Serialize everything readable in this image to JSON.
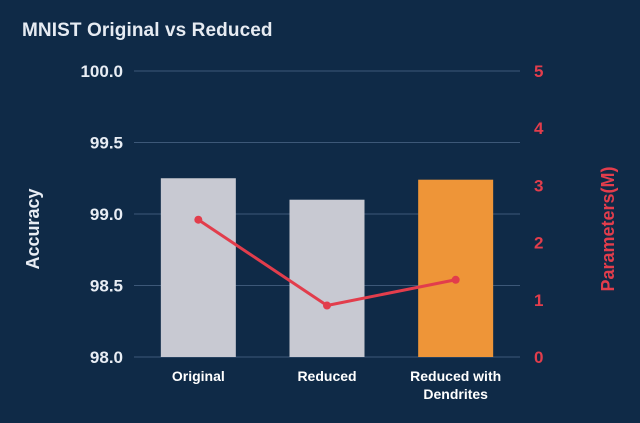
{
  "title": "MNIST Original vs Reduced",
  "chart_data": {
    "type": "bar",
    "title": "MNIST Original vs Reduced",
    "categories": [
      "Original",
      "Reduced",
      "Reduced with\nDendrites"
    ],
    "category_lines": [
      [
        "Original"
      ],
      [
        "Reduced"
      ],
      [
        "Reduced with",
        "Dendrites"
      ]
    ],
    "series": [
      {
        "name": "Accuracy",
        "type": "bar",
        "axis": "left",
        "values": [
          99.25,
          99.1,
          99.24
        ],
        "colors": [
          "#c8c9d2",
          "#c8c9d2",
          "#ee9538"
        ]
      },
      {
        "name": "Parameters(M)",
        "type": "line",
        "axis": "right",
        "values": [
          2.4,
          0.9,
          1.35
        ],
        "color": "#e23d4c"
      }
    ],
    "ylabel": "Accuracy",
    "ylabel_right": "Parameters(M)",
    "ylim": [
      98.0,
      100.0
    ],
    "yticks": [
      "98.0",
      "98.5",
      "99.0",
      "99.5",
      "100.0"
    ],
    "ylim_right": [
      0,
      5
    ],
    "yticks_right": [
      "0",
      "1",
      "2",
      "3",
      "4",
      "5"
    ],
    "grid": true,
    "colors": {
      "background": "#0f2a47",
      "grid": "#3d5878",
      "text": "#e8edf4",
      "accent": "#e23d4c"
    }
  }
}
